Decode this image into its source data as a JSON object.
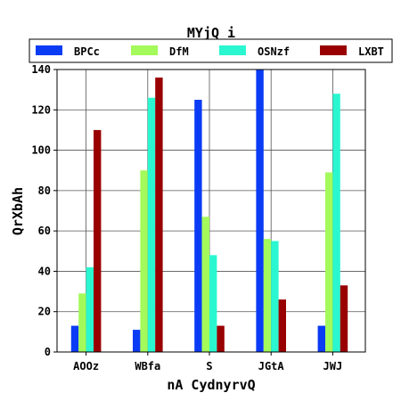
{
  "chart_data": {
    "type": "bar",
    "title": "MYjQ i",
    "xlabel": "nA CydnyrvQ",
    "ylabel": "QrXbAh",
    "categories": [
      "AOOz",
      "WBfa",
      "S",
      "JGtA",
      "JWJ"
    ],
    "ylim": [
      0,
      140
    ],
    "yticks": [
      0,
      20,
      40,
      60,
      80,
      100,
      120,
      140
    ],
    "grid": true,
    "legend_position": "top",
    "series": [
      {
        "name": "BPCc",
        "color": "#0a3bf5",
        "values": [
          13,
          11,
          125,
          140,
          13
        ]
      },
      {
        "name": "DfM",
        "color": "#a3fa5a",
        "values": [
          29,
          90,
          67,
          56,
          89
        ]
      },
      {
        "name": "OSNzf",
        "color": "#2af7d0",
        "values": [
          42,
          126,
          48,
          55,
          128
        ]
      },
      {
        "name": "LXBT",
        "color": "#990000",
        "values": [
          110,
          136,
          13,
          26,
          33
        ]
      }
    ]
  }
}
